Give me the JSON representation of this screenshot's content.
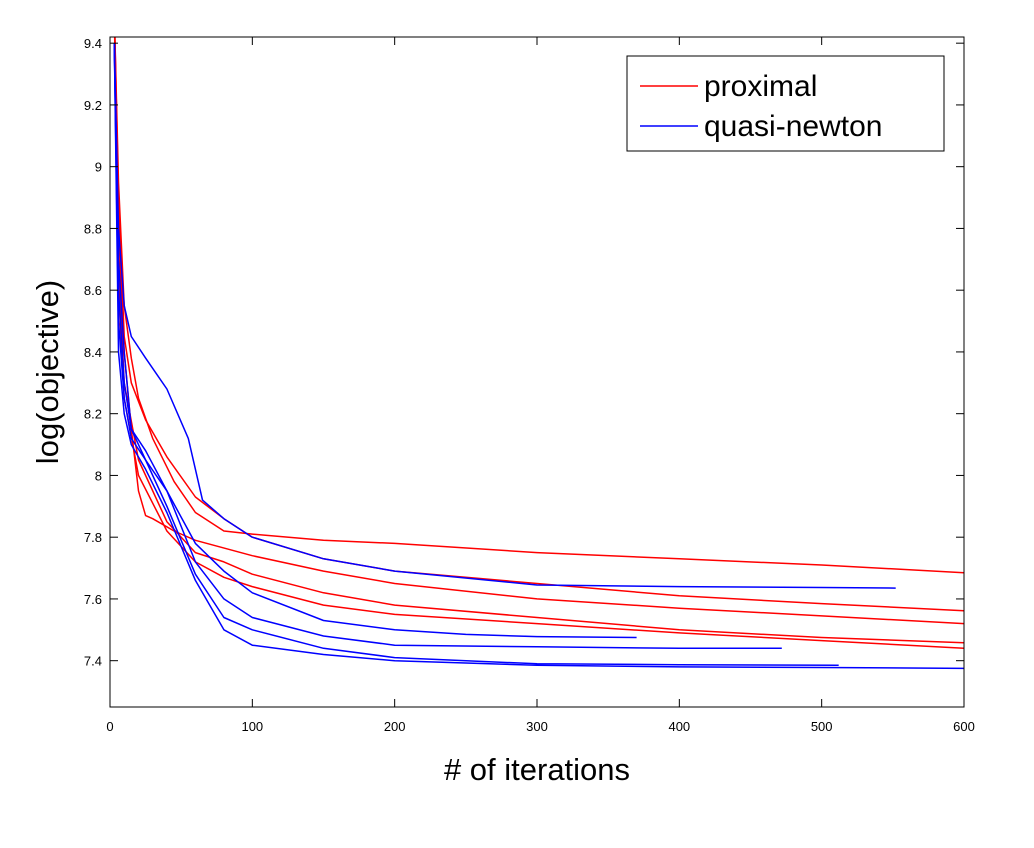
{
  "chart_data": {
    "type": "line",
    "title": "",
    "xlabel": "# of iterations",
    "ylabel": "log(objective)",
    "xlim": [
      0,
      600
    ],
    "ylim": [
      7.25,
      9.42
    ],
    "xticks": [
      0,
      100,
      200,
      300,
      400,
      500,
      600
    ],
    "yticks": [
      7.4,
      7.6,
      7.8,
      8,
      8.2,
      8.4,
      8.6,
      8.8,
      9,
      9.2,
      9.4
    ],
    "grid": false,
    "legend_position": "top-right",
    "legend": [
      {
        "label": "proximal",
        "color": "#ff0000"
      },
      {
        "label": "quasi-newton",
        "color": "#0000ff"
      }
    ],
    "series": [
      {
        "group": "proximal",
        "color": "#ff0000",
        "x": [
          3,
          6,
          10,
          15,
          20,
          30,
          45,
          60,
          80,
          100,
          150,
          200,
          300,
          400,
          500,
          600
        ],
        "y": [
          9.5,
          8.95,
          8.55,
          8.38,
          8.25,
          8.12,
          7.98,
          7.88,
          7.82,
          7.81,
          7.79,
          7.78,
          7.75,
          7.73,
          7.71,
          7.685
        ]
      },
      {
        "group": "proximal",
        "color": "#ff0000",
        "x": [
          3,
          6,
          10,
          15,
          25,
          40,
          60,
          80,
          100,
          150,
          200,
          300,
          400,
          500,
          600
        ],
        "y": [
          9.5,
          8.9,
          8.45,
          8.3,
          8.18,
          8.06,
          7.93,
          7.86,
          7.8,
          7.73,
          7.69,
          7.65,
          7.61,
          7.585,
          7.562
        ]
      },
      {
        "group": "proximal",
        "color": "#ff0000",
        "x": [
          3,
          6,
          10,
          15,
          20,
          25,
          30,
          45,
          60,
          100,
          150,
          200,
          300,
          400,
          500,
          600
        ],
        "y": [
          9.5,
          8.8,
          8.4,
          8.15,
          7.95,
          7.87,
          7.86,
          7.82,
          7.79,
          7.74,
          7.69,
          7.65,
          7.6,
          7.57,
          7.545,
          7.52
        ]
      },
      {
        "group": "proximal",
        "color": "#ff0000",
        "x": [
          3,
          6,
          10,
          20,
          40,
          60,
          80,
          100,
          150,
          200,
          300,
          400,
          500,
          600
        ],
        "y": [
          9.5,
          8.7,
          8.3,
          8.05,
          7.85,
          7.75,
          7.72,
          7.68,
          7.62,
          7.58,
          7.54,
          7.5,
          7.475,
          7.458
        ]
      },
      {
        "group": "proximal",
        "color": "#ff0000",
        "x": [
          3,
          6,
          10,
          20,
          40,
          60,
          80,
          100,
          150,
          200,
          300,
          400,
          500,
          600
        ],
        "y": [
          9.5,
          8.6,
          8.25,
          8.0,
          7.82,
          7.72,
          7.67,
          7.64,
          7.58,
          7.55,
          7.52,
          7.49,
          7.465,
          7.44
        ]
      },
      {
        "group": "quasi-newton",
        "color": "#0000ff",
        "x": [
          3,
          6,
          10,
          15,
          25,
          40,
          55,
          65,
          80,
          100,
          150,
          200,
          300,
          400,
          500,
          552
        ],
        "y": [
          9.4,
          8.8,
          8.55,
          8.45,
          8.38,
          8.28,
          8.12,
          7.92,
          7.86,
          7.8,
          7.73,
          7.69,
          7.645,
          7.64,
          7.637,
          7.635
        ]
      },
      {
        "group": "quasi-newton",
        "color": "#0000ff",
        "x": [
          3,
          6,
          10,
          15,
          25,
          40,
          60,
          80,
          100,
          150,
          200,
          250,
          300,
          370
        ],
        "y": [
          9.4,
          8.7,
          8.4,
          8.15,
          8.05,
          7.95,
          7.78,
          7.69,
          7.62,
          7.53,
          7.5,
          7.485,
          7.478,
          7.475
        ]
      },
      {
        "group": "quasi-newton",
        "color": "#0000ff",
        "x": [
          3,
          6,
          10,
          15,
          25,
          40,
          60,
          80,
          100,
          150,
          200,
          300,
          400,
          472
        ],
        "y": [
          9.4,
          8.6,
          8.3,
          8.15,
          8.08,
          7.95,
          7.72,
          7.6,
          7.54,
          7.48,
          7.45,
          7.445,
          7.44,
          7.44
        ]
      },
      {
        "group": "quasi-newton",
        "color": "#0000ff",
        "x": [
          3,
          6,
          10,
          15,
          25,
          40,
          60,
          80,
          100,
          150,
          200,
          300,
          400,
          512
        ],
        "y": [
          9.4,
          8.5,
          8.25,
          8.12,
          8.05,
          7.9,
          7.68,
          7.54,
          7.5,
          7.44,
          7.41,
          7.39,
          7.387,
          7.385
        ]
      },
      {
        "group": "quasi-newton",
        "color": "#0000ff",
        "x": [
          3,
          6,
          10,
          15,
          25,
          40,
          60,
          80,
          100,
          150,
          200,
          300,
          400,
          500,
          600
        ],
        "y": [
          9.4,
          8.4,
          8.2,
          8.1,
          8.02,
          7.88,
          7.66,
          7.5,
          7.45,
          7.42,
          7.4,
          7.385,
          7.38,
          7.378,
          7.375
        ]
      }
    ]
  }
}
